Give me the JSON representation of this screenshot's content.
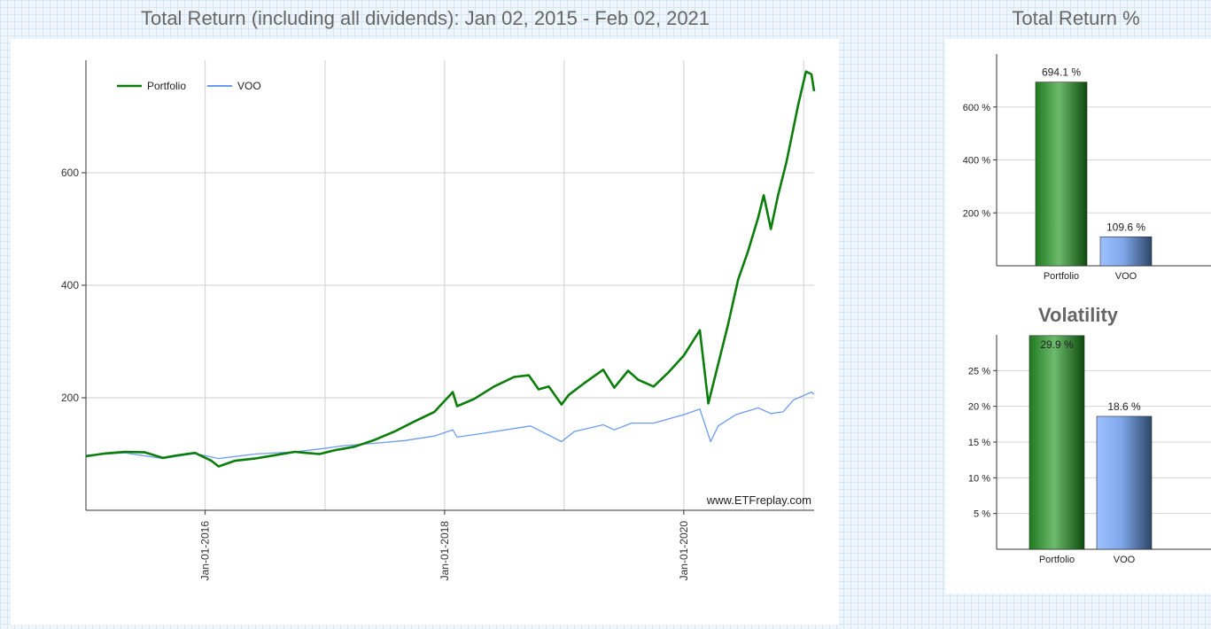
{
  "main_title": "Total Return (including all dividends): Jan 02, 2015 - Feb 02, 2021",
  "right_title": "Total Return %",
  "volatility_title": "Volatility",
  "watermark": "www.ETFreplay.com",
  "colors": {
    "portfolio": "#0a7d0a",
    "voo": "#6c9cf0"
  },
  "chart_data": [
    {
      "type": "line",
      "title": "Total Return (including all dividends): Jan 02, 2015 - Feb 02, 2021",
      "x_type": "date",
      "xlim": [
        "2015-01-02",
        "2021-02-02"
      ],
      "ylim": [
        0,
        800
      ],
      "y_ticks": [
        200,
        400,
        600
      ],
      "x_ticks": [
        "2016-01-01",
        "2018-01-01",
        "2020-01-01"
      ],
      "x_tick_labels": [
        "Jan-01-2016",
        "Jan-01-2018",
        "Jan-01-2020"
      ],
      "grid": true,
      "legend": "top-left",
      "series": [
        {
          "name": "Portfolio",
          "color": "#0a7d0a",
          "points": [
            [
              "2015-01-02",
              96
            ],
            [
              "2015-03-01",
              101
            ],
            [
              "2015-05-01",
              104
            ],
            [
              "2015-07-01",
              103
            ],
            [
              "2015-08-25",
              93
            ],
            [
              "2015-10-01",
              97
            ],
            [
              "2015-12-01",
              102
            ],
            [
              "2016-01-20",
              88
            ],
            [
              "2016-02-11",
              78
            ],
            [
              "2016-04-01",
              88
            ],
            [
              "2016-06-01",
              92
            ],
            [
              "2016-08-01",
              98
            ],
            [
              "2016-10-01",
              104
            ],
            [
              "2016-11-03",
              102
            ],
            [
              "2016-12-15",
              100
            ],
            [
              "2017-02-01",
              107
            ],
            [
              "2017-04-01",
              113
            ],
            [
              "2017-06-01",
              125
            ],
            [
              "2017-08-01",
              140
            ],
            [
              "2017-10-01",
              158
            ],
            [
              "2017-12-01",
              175
            ],
            [
              "2018-01-26",
              210
            ],
            [
              "2018-02-08",
              185
            ],
            [
              "2018-04-01",
              198
            ],
            [
              "2018-06-01",
              220
            ],
            [
              "2018-08-01",
              237
            ],
            [
              "2018-09-15",
              240
            ],
            [
              "2018-10-15",
              215
            ],
            [
              "2018-11-15",
              220
            ],
            [
              "2018-12-24",
              188
            ],
            [
              "2019-01-15",
              205
            ],
            [
              "2019-03-01",
              225
            ],
            [
              "2019-04-30",
              250
            ],
            [
              "2019-06-03",
              218
            ],
            [
              "2019-07-15",
              248
            ],
            [
              "2019-08-15",
              232
            ],
            [
              "2019-10-01",
              220
            ],
            [
              "2019-11-15",
              245
            ],
            [
              "2020-01-01",
              275
            ],
            [
              "2020-02-19",
              320
            ],
            [
              "2020-03-16",
              190
            ],
            [
              "2020-04-15",
              260
            ],
            [
              "2020-05-15",
              330
            ],
            [
              "2020-06-15",
              410
            ],
            [
              "2020-07-15",
              460
            ],
            [
              "2020-08-15",
              520
            ],
            [
              "2020-09-01",
              560
            ],
            [
              "2020-09-23",
              500
            ],
            [
              "2020-10-15",
              560
            ],
            [
              "2020-11-10",
              620
            ],
            [
              "2020-12-01",
              680
            ],
            [
              "2020-12-15",
              720
            ],
            [
              "2021-01-08",
              780
            ],
            [
              "2021-01-25",
              775
            ],
            [
              "2021-02-02",
              745
            ]
          ]
        },
        {
          "name": "VOO",
          "color": "#6c9cf0",
          "points": [
            [
              "2015-01-02",
              98
            ],
            [
              "2015-05-01",
              102
            ],
            [
              "2015-08-25",
              92
            ],
            [
              "2015-12-01",
              101
            ],
            [
              "2016-02-11",
              92
            ],
            [
              "2016-06-01",
              100
            ],
            [
              "2016-10-01",
              104
            ],
            [
              "2016-12-15",
              109
            ],
            [
              "2017-03-01",
              115
            ],
            [
              "2017-06-01",
              119
            ],
            [
              "2017-09-01",
              124
            ],
            [
              "2017-12-01",
              132
            ],
            [
              "2018-01-26",
              143
            ],
            [
              "2018-02-08",
              130
            ],
            [
              "2018-05-01",
              137
            ],
            [
              "2018-09-20",
              150
            ],
            [
              "2018-12-24",
              122
            ],
            [
              "2019-02-01",
              140
            ],
            [
              "2019-04-30",
              152
            ],
            [
              "2019-06-03",
              143
            ],
            [
              "2019-07-26",
              155
            ],
            [
              "2019-10-01",
              155
            ],
            [
              "2020-01-01",
              170
            ],
            [
              "2020-02-19",
              180
            ],
            [
              "2020-03-23",
              122
            ],
            [
              "2020-04-15",
              150
            ],
            [
              "2020-06-08",
              170
            ],
            [
              "2020-08-15",
              182
            ],
            [
              "2020-09-23",
              172
            ],
            [
              "2020-10-30",
              175
            ],
            [
              "2020-12-01",
              196
            ],
            [
              "2021-01-25",
              210
            ],
            [
              "2021-02-02",
              206
            ]
          ]
        }
      ]
    },
    {
      "type": "bar",
      "title": "",
      "categories": [
        "Portfolio",
        "VOO"
      ],
      "values": [
        694.1,
        109.6
      ],
      "value_labels": [
        "694.1 %",
        "109.6 %"
      ],
      "y_ticks": [
        200,
        400,
        600
      ],
      "y_tick_labels": [
        "200 %",
        "400 %",
        "600 %"
      ],
      "ylim": [
        0,
        800
      ],
      "colors": [
        "#0a7d0a",
        "#6c9cf0"
      ],
      "grid": true
    },
    {
      "type": "bar",
      "title": "Volatility",
      "categories": [
        "Portfolio",
        "VOO"
      ],
      "values": [
        29.9,
        18.6
      ],
      "value_labels": [
        "29.9 %",
        "18.6 %"
      ],
      "y_ticks": [
        5,
        10,
        15,
        20,
        25
      ],
      "y_tick_labels": [
        "5 %",
        "10 %",
        "15 %",
        "20 %",
        "25 %"
      ],
      "ylim": [
        0,
        30
      ],
      "colors": [
        "#0a7d0a",
        "#6c9cf0"
      ],
      "grid": true
    }
  ]
}
